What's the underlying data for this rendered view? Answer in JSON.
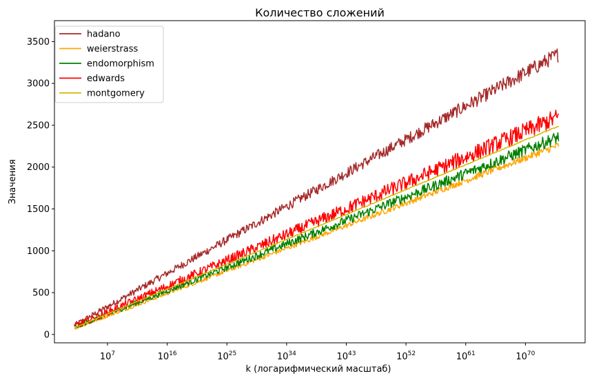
{
  "chart_data": {
    "type": "line",
    "title": "Количество сложений",
    "xlabel": "k (логарифмический масштаб)",
    "ylabel": "Значения",
    "xscale": "log",
    "xlim": [
      -1,
      79
    ],
    "ylim": [
      -100,
      3750
    ],
    "x_ticks": [
      {
        "base": "10",
        "exp": "7",
        "value": 7
      },
      {
        "base": "10",
        "exp": "16",
        "value": 16
      },
      {
        "base": "10",
        "exp": "25",
        "value": 25
      },
      {
        "base": "10",
        "exp": "34",
        "value": 34
      },
      {
        "base": "10",
        "exp": "43",
        "value": 43
      },
      {
        "base": "10",
        "exp": "52",
        "value": 52
      },
      {
        "base": "10",
        "exp": "61",
        "value": 61
      },
      {
        "base": "10",
        "exp": "70",
        "value": 70
      }
    ],
    "y_ticks": [
      "0",
      "500",
      "1000",
      "1500",
      "2000",
      "2500",
      "3000",
      "3500"
    ],
    "legend_position": "top-left",
    "grid": false,
    "x_range_log10": [
      2,
      75
    ],
    "series": [
      {
        "name": "hadano",
        "color": "#a52a2a",
        "start": 110,
        "end": 3350,
        "noise": 90
      },
      {
        "name": "weierstrass",
        "color": "#ffa500",
        "start": 70,
        "end": 2260,
        "noise": 45
      },
      {
        "name": "endomorphism",
        "color": "#008000",
        "start": 85,
        "end": 2360,
        "noise": 75
      },
      {
        "name": "edwards",
        "color": "#ff0000",
        "start": 95,
        "end": 2600,
        "noise": 110
      },
      {
        "name": "montgomery",
        "color": "#d4b800",
        "start": 80,
        "end": 2490,
        "noise": 6
      }
    ]
  }
}
